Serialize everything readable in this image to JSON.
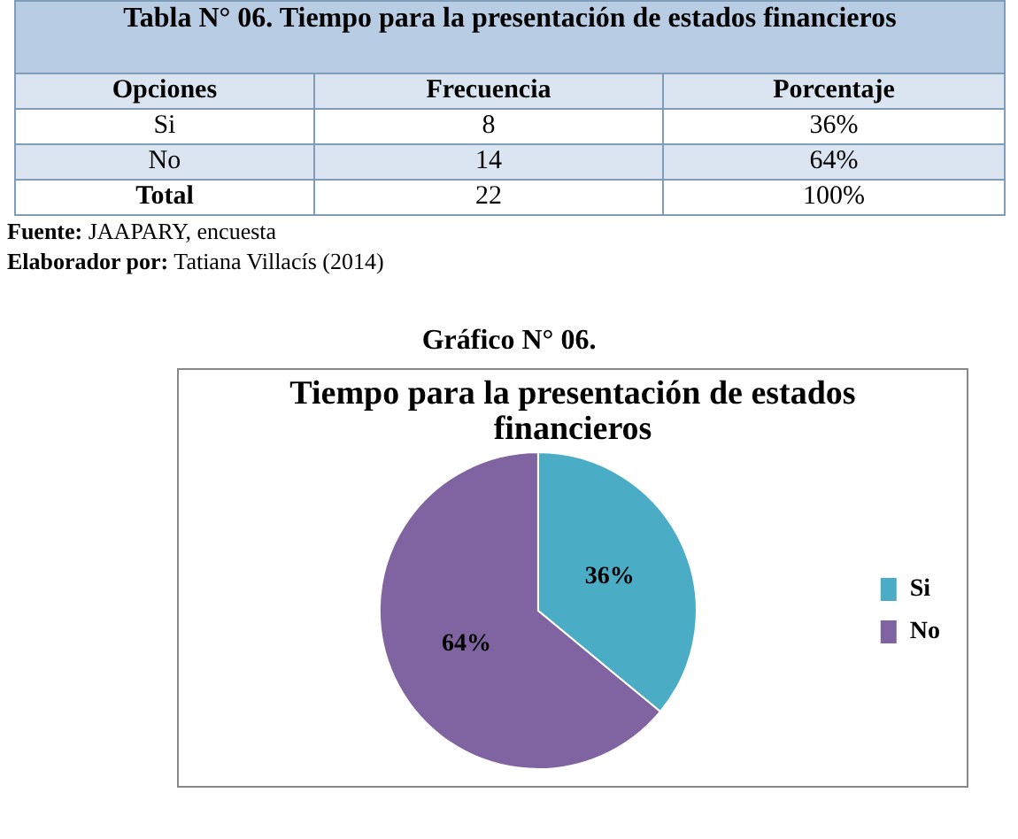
{
  "chart_data": [
    {
      "type": "other",
      "title": "Tabla N° 06.  Tiempo para la presentación de estados financieros",
      "categories": [
        "Opciones",
        "Frecuencia",
        "Porcentaje"
      ],
      "y_categories": [
        "Si",
        "No",
        "Total"
      ],
      "annotations": [
        "8",
        "36%",
        "14",
        "64%",
        "22",
        "100%",
        "Fuente: JAAPARY, encuesta",
        "Elaborador por: Tatiana Villacís (2014)"
      ]
    },
    {
      "type": "pie",
      "title": "Gráfico N° 06.",
      "subtitle": "Tiempo para la presentación de estados financieros",
      "categories": [
        "Si",
        "No"
      ],
      "values": [
        36,
        64
      ],
      "colors": [
        "#4bacc6",
        "#8064a2"
      ],
      "legend": "right",
      "value_labels": [
        "36%",
        "64%"
      ]
    }
  ]
}
